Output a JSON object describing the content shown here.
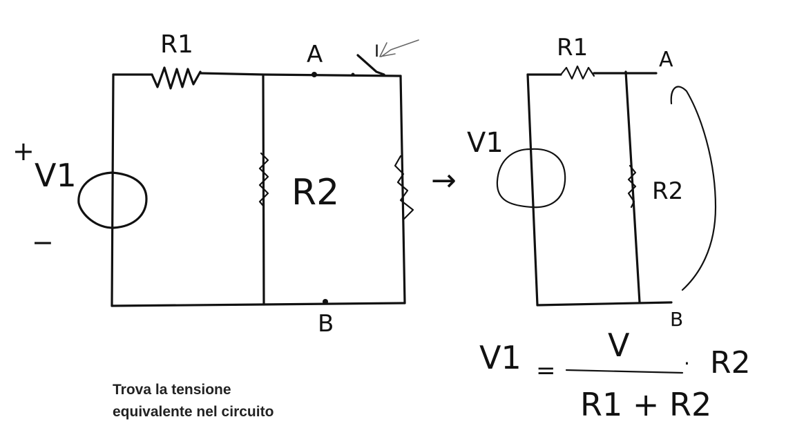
{
  "caption": {
    "line1": "Trova la tensione",
    "line2": "equivalente nel circuito"
  },
  "left_circuit": {
    "source_label": "V1",
    "plus_sign": "+",
    "minus_sign": "−",
    "r1_label": "R1",
    "r2_label": "R2",
    "node_a": "A",
    "node_b": "B",
    "current_label": "I"
  },
  "arrow_symbol": "→",
  "right_circuit": {
    "source_label": "V1",
    "r1_label": "R1",
    "r2_label": "R2",
    "node_a": "A",
    "node_b": "B"
  },
  "formula": {
    "lhs": "V1",
    "equals": "=",
    "numerator": "V",
    "dot": "·",
    "factor": "R2",
    "denominator": "R1 + R2"
  },
  "colors": {
    "ink": "#111111",
    "background": "#ffffff",
    "caption": "#222222"
  }
}
